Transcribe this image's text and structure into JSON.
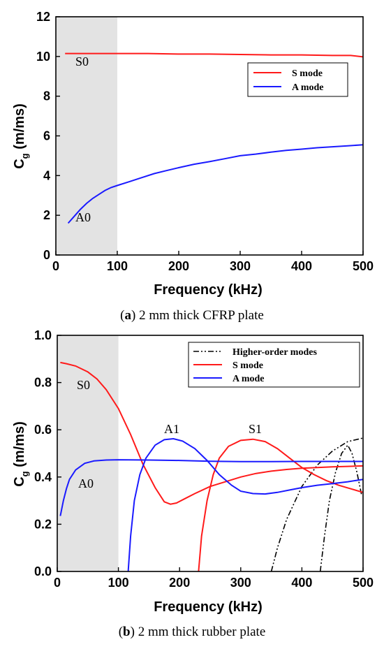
{
  "chart_data": [
    {
      "type": "line",
      "caption": {
        "label": "a",
        "text": " 2 mm thick CFRP plate"
      },
      "xlabel": "Frequency (kHz)",
      "ylabel": "C",
      "ylabel_sub": "g",
      "ylabel_unit": " (m/ms)",
      "xlim": [
        0,
        500
      ],
      "ylim": [
        0,
        12
      ],
      "xticks": [
        "0",
        "100",
        "200",
        "300",
        "400",
        "500"
      ],
      "yticks": [
        "0",
        "2",
        "4",
        "6",
        "8",
        "10",
        "12"
      ],
      "shaded_region": [
        0,
        100
      ],
      "legend": {
        "position": "top-right",
        "entries": [
          "S mode",
          "A mode"
        ]
      },
      "annotations": [
        {
          "text": "S0",
          "x": 30,
          "y": 9.8
        },
        {
          "text": "A0",
          "x": 30,
          "y": 1.9
        }
      ],
      "series": [
        {
          "name": "S mode",
          "color": "#ff1a1a",
          "dash": "",
          "points": [
            [
              15,
              10.15
            ],
            [
              50,
              10.15
            ],
            [
              100,
              10.15
            ],
            [
              150,
              10.15
            ],
            [
              200,
              10.12
            ],
            [
              250,
              10.12
            ],
            [
              300,
              10.1
            ],
            [
              350,
              10.08
            ],
            [
              400,
              10.08
            ],
            [
              450,
              10.05
            ],
            [
              480,
              10.05
            ],
            [
              500,
              9.98
            ]
          ]
        },
        {
          "name": "A mode",
          "color": "#1a1aff",
          "dash": "",
          "points": [
            [
              20,
              1.6
            ],
            [
              30,
              1.95
            ],
            [
              40,
              2.3
            ],
            [
              50,
              2.6
            ],
            [
              60,
              2.85
            ],
            [
              70,
              3.05
            ],
            [
              80,
              3.25
            ],
            [
              90,
              3.4
            ],
            [
              100,
              3.5
            ],
            [
              120,
              3.7
            ],
            [
              140,
              3.9
            ],
            [
              160,
              4.1
            ],
            [
              180,
              4.25
            ],
            [
              200,
              4.4
            ],
            [
              225,
              4.57
            ],
            [
              250,
              4.7
            ],
            [
              275,
              4.85
            ],
            [
              300,
              5.0
            ],
            [
              325,
              5.08
            ],
            [
              350,
              5.18
            ],
            [
              375,
              5.27
            ],
            [
              400,
              5.33
            ],
            [
              425,
              5.4
            ],
            [
              450,
              5.45
            ],
            [
              475,
              5.5
            ],
            [
              500,
              5.55
            ]
          ]
        }
      ]
    },
    {
      "type": "line",
      "caption": {
        "label": "b",
        "text": " 2 mm thick rubber plate"
      },
      "xlabel": "Frequency (kHz)",
      "ylabel": "C",
      "ylabel_sub": "g",
      "ylabel_unit": " (m/ms)",
      "xlim": [
        0,
        500
      ],
      "ylim": [
        0,
        1.0
      ],
      "xticks": [
        "0",
        "100",
        "200",
        "300",
        "400",
        "500"
      ],
      "yticks": [
        "0.0",
        "0.2",
        "0.4",
        "0.6",
        "0.8",
        "1.0"
      ],
      "shaded_region": [
        0,
        100
      ],
      "legend": {
        "position": "top-right",
        "entries": [
          "Higher-order modes",
          "S mode",
          "A mode"
        ]
      },
      "annotations": [
        {
          "text": "S0",
          "x": 40,
          "y": 0.8
        },
        {
          "text": "A0",
          "x": 40,
          "y": 0.39
        },
        {
          "text": "A1",
          "x": 180,
          "y": 0.585
        },
        {
          "text": "S1",
          "x": 310,
          "y": 0.585
        }
      ],
      "series": [
        {
          "name": "Higher-order modes",
          "color": "#000000",
          "dash": "8,3,2,3,2,3",
          "points": [
            [
              350,
              0.0
            ],
            [
              360,
              0.1
            ],
            [
              375,
              0.22
            ],
            [
              400,
              0.36
            ],
            [
              425,
              0.45
            ],
            [
              450,
              0.51
            ],
            [
              475,
              0.55
            ],
            [
              500,
              0.565
            ]
          ]
        },
        {
          "name": "",
          "color": "#000000",
          "dash": "8,3,2,3,2,3",
          "points": [
            [
              430,
              0.0
            ],
            [
              437,
              0.15
            ],
            [
              445,
              0.3
            ],
            [
              455,
              0.42
            ],
            [
              465,
              0.5
            ],
            [
              475,
              0.535
            ],
            [
              482,
              0.5
            ],
            [
              490,
              0.42
            ],
            [
              498,
              0.32
            ]
          ]
        },
        {
          "name": "S mode",
          "color": "#ff1a1a",
          "dash": "",
          "points": [
            [
              5,
              0.885
            ],
            [
              15,
              0.88
            ],
            [
              30,
              0.87
            ],
            [
              50,
              0.845
            ],
            [
              65,
              0.815
            ],
            [
              80,
              0.77
            ],
            [
              100,
              0.69
            ],
            [
              120,
              0.58
            ],
            [
              140,
              0.455
            ],
            [
              160,
              0.355
            ],
            [
              175,
              0.295
            ],
            [
              185,
              0.285
            ],
            [
              195,
              0.29
            ],
            [
              210,
              0.31
            ],
            [
              225,
              0.33
            ],
            [
              250,
              0.36
            ],
            [
              275,
              0.38
            ],
            [
              300,
              0.4
            ],
            [
              325,
              0.415
            ],
            [
              350,
              0.425
            ],
            [
              375,
              0.432
            ],
            [
              400,
              0.437
            ],
            [
              425,
              0.44
            ],
            [
              450,
              0.443
            ],
            [
              475,
              0.445
            ],
            [
              500,
              0.447
            ]
          ]
        },
        {
          "name": "",
          "color": "#ff1a1a",
          "dash": "",
          "points": [
            [
              231,
              0.0
            ],
            [
              236,
              0.15
            ],
            [
              245,
              0.3
            ],
            [
              255,
              0.41
            ],
            [
              265,
              0.48
            ],
            [
              280,
              0.53
            ],
            [
              300,
              0.555
            ],
            [
              320,
              0.56
            ],
            [
              340,
              0.55
            ],
            [
              360,
              0.52
            ],
            [
              380,
              0.48
            ],
            [
              400,
              0.44
            ],
            [
              420,
              0.41
            ],
            [
              440,
              0.385
            ],
            [
              460,
              0.365
            ],
            [
              480,
              0.35
            ],
            [
              500,
              0.335
            ]
          ]
        },
        {
          "name": "A mode",
          "color": "#1a1aff",
          "dash": "",
          "points": [
            [
              5,
              0.235
            ],
            [
              10,
              0.3
            ],
            [
              15,
              0.35
            ],
            [
              20,
              0.39
            ],
            [
              30,
              0.43
            ],
            [
              45,
              0.458
            ],
            [
              60,
              0.468
            ],
            [
              80,
              0.472
            ],
            [
              100,
              0.473
            ],
            [
              150,
              0.472
            ],
            [
              200,
              0.47
            ],
            [
              250,
              0.467
            ],
            [
              300,
              0.465
            ],
            [
              350,
              0.465
            ],
            [
              400,
              0.466
            ],
            [
              450,
              0.466
            ],
            [
              500,
              0.466
            ]
          ]
        },
        {
          "name": "",
          "color": "#1a1aff",
          "dash": "",
          "points": [
            [
              116,
              0.0
            ],
            [
              120,
              0.15
            ],
            [
              126,
              0.3
            ],
            [
              135,
              0.41
            ],
            [
              145,
              0.48
            ],
            [
              160,
              0.535
            ],
            [
              175,
              0.558
            ],
            [
              190,
              0.562
            ],
            [
              205,
              0.552
            ],
            [
              225,
              0.52
            ],
            [
              245,
              0.47
            ],
            [
              265,
              0.41
            ],
            [
              285,
              0.365
            ],
            [
              300,
              0.34
            ],
            [
              320,
              0.33
            ],
            [
              340,
              0.328
            ],
            [
              360,
              0.335
            ],
            [
              380,
              0.345
            ],
            [
              400,
              0.355
            ],
            [
              425,
              0.365
            ],
            [
              450,
              0.372
            ],
            [
              475,
              0.38
            ],
            [
              500,
              0.39
            ]
          ]
        }
      ]
    }
  ]
}
